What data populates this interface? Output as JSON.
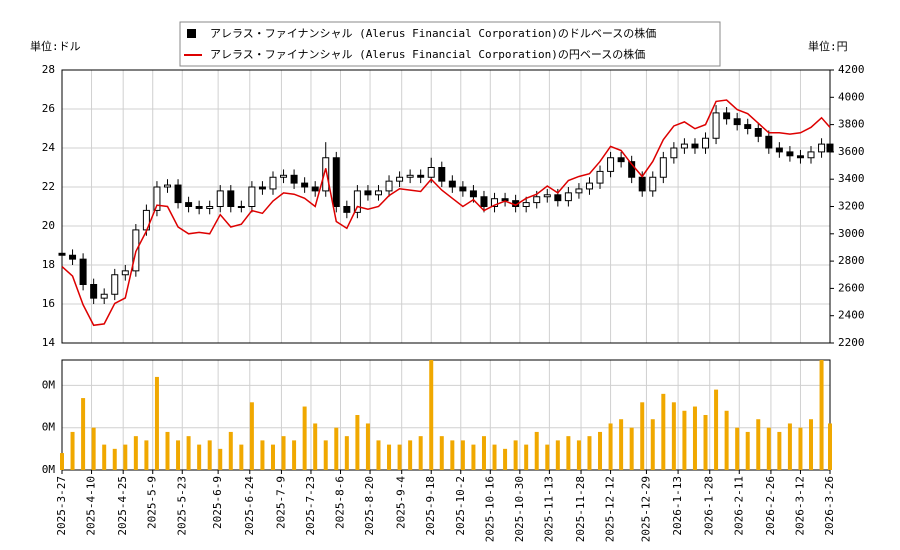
{
  "chart_data": [
    {
      "type": "candlestick",
      "ylabel": "単位:ドル",
      "y2label": "単位:円",
      "x": [
        "2025-3-27",
        "2025-4-1",
        "2025-4-6",
        "2025-4-11",
        "2025-4-16",
        "2025-4-21",
        "2025-4-26",
        "2025-5-1",
        "2025-5-6",
        "2025-5-11",
        "2025-5-16",
        "2025-5-21",
        "2025-5-26",
        "2025-5-31",
        "2025-6-5",
        "2025-6-10",
        "2025-6-15",
        "2025-6-20",
        "2025-6-25",
        "2025-6-30",
        "2025-7-5",
        "2025-7-10",
        "2025-7-15",
        "2025-7-20",
        "2025-7-25",
        "2025-7-30",
        "2025-8-4",
        "2025-8-9",
        "2025-8-14",
        "2025-8-19",
        "2025-8-24",
        "2025-8-29",
        "2025-9-3",
        "2025-9-8",
        "2025-9-13",
        "2025-9-18",
        "2025-9-23",
        "2025-9-28",
        "2025-10-3",
        "2025-10-8",
        "2025-10-13",
        "2025-10-18",
        "2025-10-23",
        "2025-10-28",
        "2025-11-2",
        "2025-11-7",
        "2025-11-12",
        "2025-11-17",
        "2025-11-22",
        "2025-11-27",
        "2025-12-2",
        "2025-12-7",
        "2025-12-12",
        "2025-12-17",
        "2025-12-22",
        "2025-12-27",
        "2026-1-1",
        "2026-1-6",
        "2026-1-11",
        "2026-1-16",
        "2026-1-21",
        "2026-1-26",
        "2026-1-31",
        "2026-2-5",
        "2026-2-10",
        "2026-2-15",
        "2026-2-20",
        "2026-2-25",
        "2026-3-2",
        "2026-3-7",
        "2026-3-12",
        "2026-3-17",
        "2026-3-22",
        "2026-3-26"
      ],
      "series": [
        {
          "name": "アレラス・ファイナンシャル (Alerus Financial Corporation)のドルベースの株価",
          "color": "#000000",
          "open": [
            18.6,
            18.5,
            18.3,
            17.0,
            16.3,
            16.5,
            17.5,
            17.7,
            19.8,
            20.8,
            22.0,
            22.1,
            21.2,
            21.0,
            20.9,
            21.0,
            21.8,
            21.0,
            21.0,
            22.0,
            21.9,
            22.5,
            22.6,
            22.2,
            22.0,
            21.8,
            23.5,
            21.0,
            20.7,
            21.8,
            21.6,
            21.8,
            22.3,
            22.5,
            22.6,
            22.5,
            23.0,
            22.3,
            22.0,
            21.8,
            21.5,
            21.0,
            21.4,
            21.3,
            21.0,
            21.2,
            21.5,
            21.6,
            21.3,
            21.7,
            21.9,
            22.2,
            22.8,
            23.5,
            23.3,
            22.5,
            21.8,
            22.5,
            23.5,
            24.0,
            24.2,
            24.0,
            24.5,
            25.8,
            25.5,
            25.2,
            25.0,
            24.6,
            24.0,
            23.8,
            23.6,
            23.5,
            23.8,
            24.2
          ],
          "high": [
            18.9,
            18.8,
            18.6,
            17.3,
            16.8,
            17.8,
            18.0,
            20.1,
            21.1,
            22.3,
            22.4,
            22.4,
            21.5,
            21.3,
            21.3,
            22.1,
            22.1,
            21.3,
            22.3,
            22.3,
            22.8,
            22.9,
            22.9,
            22.5,
            22.3,
            24.3,
            23.8,
            21.3,
            22.1,
            22.1,
            22.1,
            22.6,
            22.8,
            22.9,
            22.9,
            23.5,
            23.3,
            22.6,
            22.3,
            22.1,
            21.8,
            21.7,
            21.7,
            21.6,
            21.5,
            21.8,
            21.9,
            21.9,
            22.0,
            22.2,
            22.5,
            23.1,
            23.8,
            23.8,
            23.6,
            22.8,
            22.8,
            23.8,
            24.3,
            24.5,
            24.5,
            24.8,
            26.2,
            26.1,
            25.8,
            25.5,
            25.3,
            24.9,
            24.3,
            24.1,
            23.9,
            24.1,
            24.5,
            24.5
          ],
          "low": [
            18.2,
            18.0,
            16.7,
            16.0,
            16.0,
            16.2,
            17.2,
            17.4,
            19.5,
            20.5,
            21.7,
            20.9,
            20.7,
            20.6,
            20.6,
            20.7,
            20.7,
            20.7,
            20.7,
            21.6,
            21.6,
            22.2,
            21.9,
            21.7,
            21.5,
            21.5,
            20.7,
            20.4,
            20.4,
            21.3,
            21.3,
            21.5,
            22.0,
            22.2,
            22.2,
            22.2,
            22.0,
            21.7,
            21.5,
            21.2,
            20.7,
            20.7,
            21.0,
            20.7,
            20.7,
            20.9,
            21.2,
            21.0,
            21.0,
            21.4,
            21.6,
            21.9,
            22.5,
            23.0,
            22.2,
            21.5,
            21.5,
            22.2,
            23.2,
            23.7,
            23.7,
            23.7,
            24.2,
            25.2,
            24.9,
            24.7,
            24.3,
            23.7,
            23.5,
            23.3,
            23.2,
            23.2,
            23.5,
            23.5
          ],
          "close": [
            18.5,
            18.3,
            17.0,
            16.3,
            16.5,
            17.5,
            17.7,
            19.8,
            20.8,
            22.0,
            22.1,
            21.2,
            21.0,
            20.9,
            21.0,
            21.8,
            21.0,
            21.0,
            22.0,
            21.9,
            22.5,
            22.6,
            22.2,
            22.0,
            21.8,
            23.5,
            21.0,
            20.7,
            21.8,
            21.6,
            21.8,
            22.3,
            22.5,
            22.6,
            22.5,
            23.0,
            22.3,
            22.0,
            21.8,
            21.5,
            21.0,
            21.4,
            21.3,
            21.0,
            21.2,
            21.5,
            21.6,
            21.3,
            21.7,
            21.9,
            22.2,
            22.8,
            23.5,
            23.3,
            22.5,
            21.8,
            22.5,
            23.5,
            24.0,
            24.2,
            24.0,
            24.5,
            25.8,
            25.5,
            25.2,
            25.0,
            24.6,
            24.0,
            23.8,
            23.6,
            23.5,
            23.8,
            24.2,
            23.8
          ]
        },
        {
          "name": "アレラス・ファイナンシャル (Alerus Financial Corporation)の円ベースの株価",
          "color": "#dd0000",
          "axis": "y2",
          "values": [
            2760,
            2690,
            2480,
            2330,
            2340,
            2490,
            2530,
            2870,
            3020,
            3210,
            3200,
            3050,
            3000,
            3010,
            3000,
            3140,
            3050,
            3070,
            3170,
            3150,
            3240,
            3300,
            3290,
            3260,
            3200,
            3480,
            3090,
            3040,
            3200,
            3180,
            3200,
            3280,
            3330,
            3320,
            3310,
            3400,
            3320,
            3260,
            3200,
            3250,
            3170,
            3210,
            3240,
            3210,
            3260,
            3290,
            3350,
            3300,
            3390,
            3420,
            3440,
            3530,
            3640,
            3610,
            3510,
            3420,
            3530,
            3690,
            3790,
            3820,
            3770,
            3800,
            3970,
            3980,
            3910,
            3880,
            3810,
            3740,
            3740,
            3730,
            3740,
            3780,
            3850,
            3780
          ]
        }
      ],
      "ylim": [
        14,
        28
      ],
      "yticks": [
        14,
        16,
        18,
        20,
        22,
        24,
        26,
        28
      ],
      "y2lim": [
        2200,
        4200
      ],
      "y2ticks": [
        2200,
        2400,
        2600,
        2800,
        3000,
        3200,
        3400,
        3600,
        3800,
        4000,
        4200
      ],
      "grid": true
    },
    {
      "type": "bar",
      "color": "#f0a800",
      "x": [
        "2025-3-27",
        "2025-4-1",
        "2025-4-6",
        "2025-4-11",
        "2025-4-16",
        "2025-4-21",
        "2025-4-26",
        "2025-5-1",
        "2025-5-6",
        "2025-5-11",
        "2025-5-16",
        "2025-5-21",
        "2025-5-26",
        "2025-5-31",
        "2025-6-5",
        "2025-6-10",
        "2025-6-15",
        "2025-6-20",
        "2025-6-25",
        "2025-6-30",
        "2025-7-5",
        "2025-7-10",
        "2025-7-15",
        "2025-7-20",
        "2025-7-25",
        "2025-7-30",
        "2025-8-4",
        "2025-8-9",
        "2025-8-14",
        "2025-8-19",
        "2025-8-24",
        "2025-8-29",
        "2025-9-3",
        "2025-9-8",
        "2025-9-13",
        "2025-9-18",
        "2025-9-23",
        "2025-9-28",
        "2025-10-3",
        "2025-10-8",
        "2025-10-13",
        "2025-10-18",
        "2025-10-23",
        "2025-10-28",
        "2025-11-2",
        "2025-11-7",
        "2025-11-12",
        "2025-11-17",
        "2025-11-22",
        "2025-11-27",
        "2025-12-2",
        "2025-12-7",
        "2025-12-12",
        "2025-12-17",
        "2025-12-22",
        "2025-12-27",
        "2026-1-1",
        "2026-1-6",
        "2026-1-11",
        "2026-1-16",
        "2026-1-21",
        "2026-1-26",
        "2026-1-31",
        "2026-2-5",
        "2026-2-10",
        "2026-2-15",
        "2026-2-20",
        "2026-2-25",
        "2026-3-2",
        "2026-3-7",
        "2026-3-12",
        "2026-3-17",
        "2026-3-22",
        "2026-3-26"
      ],
      "values": [
        20000,
        45000,
        85000,
        50000,
        30000,
        25000,
        30000,
        40000,
        35000,
        110000,
        45000,
        35000,
        40000,
        30000,
        35000,
        25000,
        45000,
        30000,
        80000,
        35000,
        30000,
        40000,
        35000,
        75000,
        55000,
        35000,
        50000,
        40000,
        65000,
        55000,
        35000,
        30000,
        30000,
        35000,
        40000,
        130000,
        40000,
        35000,
        35000,
        30000,
        40000,
        30000,
        25000,
        35000,
        30000,
        45000,
        30000,
        35000,
        40000,
        35000,
        40000,
        45000,
        55000,
        60000,
        50000,
        80000,
        60000,
        90000,
        80000,
        70000,
        75000,
        65000,
        95000,
        70000,
        50000,
        45000,
        60000,
        50000,
        45000,
        55000,
        50000,
        60000,
        130000,
        55000
      ],
      "ylim": [
        0,
        130000
      ],
      "yticks": [
        {
          "value": 0,
          "label": "0M"
        },
        {
          "value": 50000,
          "label": "0M"
        },
        {
          "value": 100000,
          "label": "0M"
        }
      ],
      "xticks": [
        "2025-3-27",
        "2025-4-10",
        "2025-4-25",
        "2025-5-9",
        "2025-5-23",
        "2025-6-9",
        "2025-6-24",
        "2025-7-9",
        "2025-7-23",
        "2025-8-6",
        "2025-8-20",
        "2025-9-4",
        "2025-9-18",
        "2025-10-2",
        "2025-10-16",
        "2025-10-30",
        "2025-11-13",
        "2025-11-28",
        "2025-12-12",
        "2025-12-29",
        "2026-1-13",
        "2026-1-28",
        "2026-2-11",
        "2026-2-26",
        "2026-3-12",
        "2026-3-26"
      ],
      "grid": true
    }
  ]
}
